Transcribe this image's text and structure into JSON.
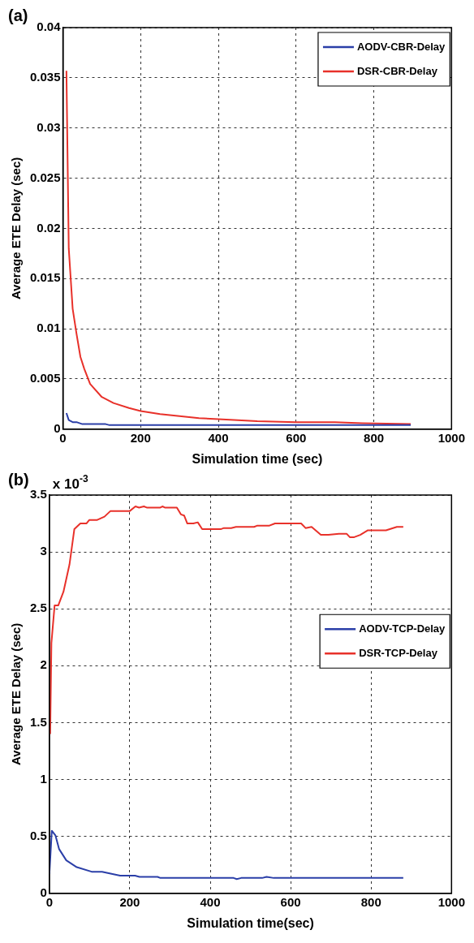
{
  "chart_data": [
    {
      "type": "line",
      "title": "(a)",
      "xlabel": "Simulation time (sec)",
      "ylabel": "Average ETE Delay (sec)",
      "xlim": [
        0,
        1000
      ],
      "xticks": [
        0,
        200,
        400,
        600,
        800,
        1000
      ],
      "ylim": [
        0,
        0.04
      ],
      "yticks": [
        0,
        0.005,
        0.01,
        0.015,
        0.02,
        0.025,
        0.03,
        0.035,
        0.04
      ],
      "grid": true,
      "legend": "top right",
      "marker": "none",
      "line_style": "solid",
      "series": [
        {
          "name": "AODV-CBR-Delay",
          "color": "#2b3fa8",
          "x": [
            9,
            15,
            25,
            35,
            50,
            80,
            110,
            120,
            300,
            600,
            895
          ],
          "values": [
            0.0016,
            0.0009,
            0.0007,
            0.0007,
            0.0005,
            0.0005,
            0.0005,
            0.0004,
            0.0004,
            0.0004,
            0.0004
          ]
        },
        {
          "name": "DSR-CBR-Delay",
          "color": "#e8312a",
          "x": [
            9,
            15,
            20,
            25,
            35,
            45,
            55,
            70,
            100,
            130,
            170,
            200,
            250,
            300,
            350,
            400,
            450,
            500,
            600,
            700,
            770,
            895
          ],
          "values": [
            0.0357,
            0.018,
            0.015,
            0.012,
            0.0095,
            0.0072,
            0.006,
            0.0045,
            0.0032,
            0.0026,
            0.0021,
            0.0018,
            0.0015,
            0.0013,
            0.0011,
            0.001,
            0.0009,
            0.0008,
            0.0007,
            0.0007,
            0.0006,
            0.0005
          ]
        }
      ]
    },
    {
      "type": "line",
      "title": "(b)",
      "xlabel": "Simulation time(sec)",
      "ylabel": "Average ETE Delay (sec)",
      "annotations": [
        "x 10$^{-3}$"
      ],
      "xlim": [
        0,
        1000
      ],
      "xticks": [
        0,
        200,
        400,
        600,
        800,
        1000
      ],
      "ylim": [
        0,
        3.5
      ],
      "yticks": [
        0,
        0.5,
        1,
        1.5,
        2,
        2.5,
        3,
        3.5
      ],
      "grid": true,
      "legend": "right",
      "marker": "none",
      "line_style": "solid",
      "series": [
        {
          "name": "AODV-TCP-Delay",
          "color": "#2b3fa8",
          "x": [
            0,
            6,
            15,
            24,
            42,
            68,
            105,
            131,
            157,
            176,
            213,
            224,
            269,
            276,
            458,
            466,
            477,
            529,
            540,
            558,
            880
          ],
          "values": [
            0.17,
            0.55,
            0.51,
            0.39,
            0.29,
            0.23,
            0.19,
            0.19,
            0.17,
            0.155,
            0.155,
            0.145,
            0.145,
            0.135,
            0.135,
            0.125,
            0.135,
            0.135,
            0.145,
            0.135,
            0.135
          ]
        },
        {
          "name": "DSR-TCP-Delay",
          "color": "#e8312a",
          "x": [
            2,
            5,
            13,
            22,
            35,
            50,
            62,
            77,
            92,
            99,
            118,
            137,
            152,
            200,
            214,
            223,
            235,
            242,
            276,
            281,
            287,
            317,
            327,
            335,
            343,
            358,
            369,
            380,
            426,
            434,
            452,
            464,
            509,
            516,
            546,
            561,
            626,
            637,
            652,
            675,
            694,
            720,
            739,
            747,
            758,
            773,
            792,
            837,
            864,
            880
          ],
          "values": [
            1.4,
            2.2,
            2.53,
            2.53,
            2.65,
            2.89,
            3.2,
            3.25,
            3.25,
            3.28,
            3.28,
            3.31,
            3.36,
            3.36,
            3.4,
            3.39,
            3.4,
            3.39,
            3.39,
            3.4,
            3.39,
            3.39,
            3.33,
            3.32,
            3.25,
            3.25,
            3.26,
            3.2,
            3.2,
            3.21,
            3.21,
            3.22,
            3.22,
            3.23,
            3.23,
            3.25,
            3.25,
            3.21,
            3.22,
            3.15,
            3.15,
            3.16,
            3.16,
            3.13,
            3.13,
            3.15,
            3.19,
            3.19,
            3.22,
            3.22
          ]
        }
      ]
    }
  ]
}
